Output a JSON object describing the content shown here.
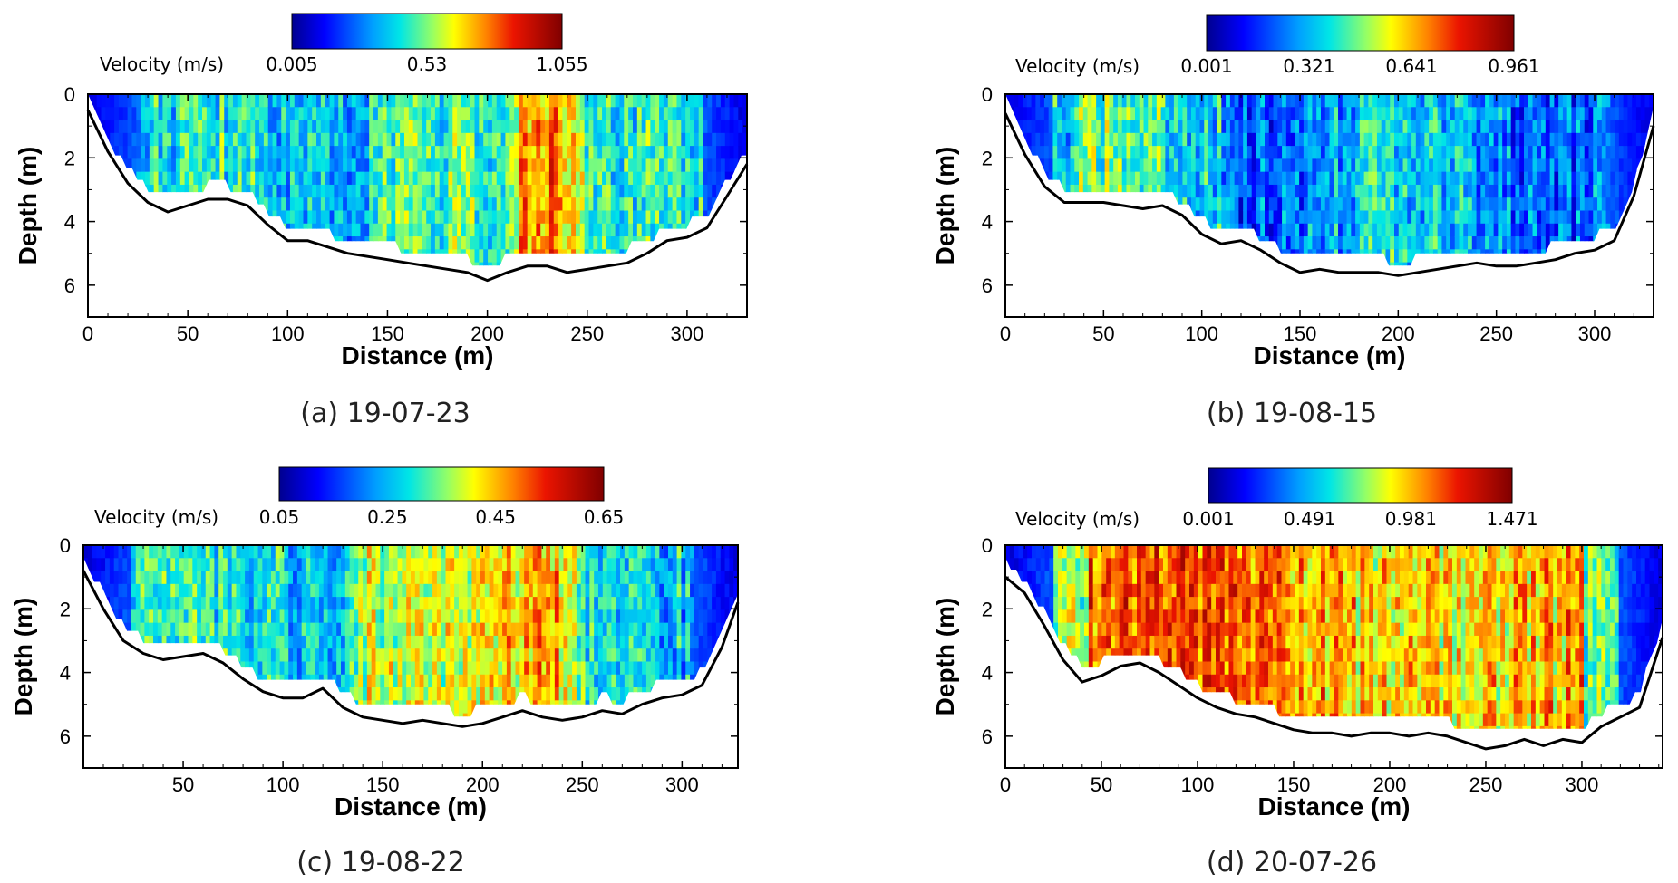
{
  "chart_data": [
    {
      "type": "heatmap",
      "title": "(a) 19-07-23",
      "xlabel": "Distance (m)",
      "ylabel": "Depth (m)",
      "colorbar_label": "Velocity (m/s)",
      "colorbar_ticks": [
        0.005,
        0.53,
        1.055
      ],
      "colorbar_range": [
        0.005,
        1.055
      ],
      "xlim": [
        0,
        330
      ],
      "ylim": [
        7,
        0
      ],
      "x_ticks": [
        0,
        50,
        100,
        150,
        200,
        250,
        300
      ],
      "y_ticks": [
        0,
        2,
        4,
        6
      ],
      "bed_profile": {
        "x": [
          0,
          10,
          20,
          30,
          40,
          50,
          60,
          70,
          80,
          90,
          100,
          110,
          120,
          130,
          140,
          150,
          160,
          170,
          180,
          190,
          200,
          210,
          220,
          230,
          240,
          250,
          260,
          270,
          280,
          290,
          300,
          310,
          320,
          330
        ],
        "depth": [
          0.5,
          1.8,
          2.8,
          3.4,
          3.7,
          3.5,
          3.3,
          3.3,
          3.5,
          4.1,
          4.6,
          4.6,
          4.8,
          5.0,
          5.1,
          5.2,
          5.3,
          5.4,
          5.5,
          5.6,
          5.85,
          5.6,
          5.4,
          5.4,
          5.6,
          5.5,
          5.4,
          5.3,
          5.0,
          4.6,
          4.5,
          4.2,
          3.2,
          2.2
        ]
      }
    },
    {
      "type": "heatmap",
      "title": "(b) 19-08-15",
      "xlabel": "Distance (m)",
      "ylabel": "Depth (m)",
      "colorbar_label": "Velocity (m/s)",
      "colorbar_ticks": [
        0.001,
        0.321,
        0.641,
        0.961
      ],
      "colorbar_range": [
        0.001,
        0.961
      ],
      "xlim": [
        0,
        330
      ],
      "ylim": [
        7,
        0
      ],
      "x_ticks": [
        0,
        50,
        100,
        150,
        200,
        250,
        300
      ],
      "y_ticks": [
        0,
        2,
        4,
        6
      ],
      "bed_profile": {
        "x": [
          0,
          10,
          20,
          30,
          40,
          50,
          60,
          70,
          80,
          90,
          100,
          110,
          120,
          130,
          140,
          150,
          160,
          170,
          180,
          190,
          200,
          210,
          220,
          230,
          240,
          250,
          260,
          270,
          280,
          290,
          300,
          310,
          320,
          330
        ],
        "depth": [
          0.6,
          1.9,
          2.9,
          3.4,
          3.4,
          3.4,
          3.5,
          3.6,
          3.5,
          3.8,
          4.4,
          4.7,
          4.6,
          4.9,
          5.3,
          5.6,
          5.5,
          5.6,
          5.6,
          5.6,
          5.7,
          5.6,
          5.5,
          5.4,
          5.3,
          5.4,
          5.4,
          5.3,
          5.2,
          5.0,
          4.9,
          4.6,
          3.2,
          1.0
        ]
      }
    },
    {
      "type": "heatmap",
      "title": "(c) 19-08-22",
      "xlabel": "Distance (m)",
      "ylabel": "Depth (m)",
      "colorbar_label": "Velocity (m/s)",
      "colorbar_ticks": [
        0.05,
        0.25,
        0.45,
        0.65
      ],
      "colorbar_range": [
        0.05,
        0.65
      ],
      "xlim": [
        0,
        328
      ],
      "ylim": [
        7,
        0
      ],
      "x_ticks": [
        50,
        100,
        150,
        200,
        250,
        300
      ],
      "y_ticks": [
        0,
        2,
        4,
        6
      ],
      "bed_profile": {
        "x": [
          0,
          10,
          20,
          30,
          40,
          50,
          60,
          70,
          80,
          90,
          100,
          110,
          120,
          130,
          140,
          150,
          160,
          170,
          180,
          190,
          200,
          210,
          220,
          230,
          240,
          250,
          260,
          270,
          280,
          290,
          300,
          310,
          320,
          328
        ],
        "depth": [
          0.8,
          2.0,
          3.0,
          3.4,
          3.6,
          3.5,
          3.4,
          3.7,
          4.2,
          4.6,
          4.8,
          4.8,
          4.5,
          5.1,
          5.4,
          5.5,
          5.6,
          5.5,
          5.6,
          5.7,
          5.6,
          5.4,
          5.2,
          5.4,
          5.5,
          5.4,
          5.2,
          5.3,
          5.0,
          4.8,
          4.7,
          4.4,
          3.2,
          1.8
        ]
      }
    },
    {
      "type": "heatmap",
      "title": "(d) 20-07-26",
      "xlabel": "Distance (m)",
      "ylabel": "Depth (m)",
      "colorbar_label": "Velocity (m/s)",
      "colorbar_ticks": [
        0.001,
        0.491,
        0.981,
        1.471
      ],
      "colorbar_range": [
        0.001,
        1.471
      ],
      "xlim": [
        0,
        342
      ],
      "ylim": [
        7,
        0
      ],
      "x_ticks": [
        0,
        50,
        100,
        150,
        200,
        250,
        300
      ],
      "y_ticks": [
        0,
        2,
        4,
        6
      ],
      "bed_profile": {
        "x": [
          0,
          10,
          20,
          30,
          40,
          50,
          60,
          70,
          80,
          90,
          100,
          110,
          120,
          130,
          140,
          150,
          160,
          170,
          180,
          190,
          200,
          210,
          220,
          230,
          240,
          250,
          260,
          270,
          280,
          290,
          300,
          310,
          320,
          330,
          342
        ],
        "depth": [
          1.0,
          1.5,
          2.5,
          3.6,
          4.3,
          4.1,
          3.8,
          3.7,
          4.0,
          4.4,
          4.8,
          5.1,
          5.3,
          5.4,
          5.6,
          5.8,
          5.9,
          5.9,
          6.0,
          5.9,
          5.9,
          6.0,
          5.9,
          6.0,
          6.2,
          6.4,
          6.3,
          6.1,
          6.3,
          6.1,
          6.2,
          5.7,
          5.4,
          5.1,
          2.9
        ]
      }
    }
  ]
}
